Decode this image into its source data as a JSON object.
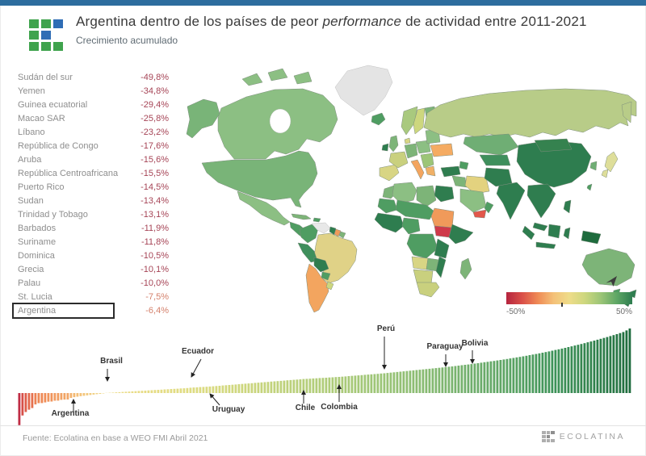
{
  "header": {
    "title": {
      "prefix": "Argentina dentro de los países de peor ",
      "italic": "performance",
      "suffix": " de actividad entre 2011-2021"
    },
    "subtitle": "Crecimiento acumulado",
    "accent_bar_color": "#2d6d9e",
    "logo_green": "#3fa34d",
    "logo_blue": "#2f6db5"
  },
  "ranking": {
    "value_color": "#a64456",
    "muted_value_color": "#d4806b",
    "rows": [
      {
        "label": "Sudán del sur",
        "value": "-49,8%"
      },
      {
        "label": "Yemen",
        "value": "-34,8%"
      },
      {
        "label": "Guinea ecuatorial",
        "value": "-29,4%"
      },
      {
        "label": "Macao SAR",
        "value": "-25,8%"
      },
      {
        "label": "Líbano",
        "value": "-23,2%"
      },
      {
        "label": "República de Congo",
        "value": "-17,6%"
      },
      {
        "label": "Aruba",
        "value": "-15,6%"
      },
      {
        "label": "República Centroafricana",
        "value": "-15,5%"
      },
      {
        "label": "Puerto Rico",
        "value": "-14,5%"
      },
      {
        "label": "Sudan",
        "value": "-13,4%"
      },
      {
        "label": "Trinidad y Tobago",
        "value": "-13,1%"
      },
      {
        "label": "Barbados",
        "value": "-11,9%"
      },
      {
        "label": "Suriname",
        "value": "-11,8%"
      },
      {
        "label": "Dominica",
        "value": "-10,5%"
      },
      {
        "label": "Grecia",
        "value": "-10,1%"
      },
      {
        "label": "Palau",
        "value": "-10,0%"
      },
      {
        "label": "St. Lucia",
        "value": "-7,5%",
        "muted": true
      },
      {
        "label": "Argentina",
        "value": "-6,4%",
        "muted": true,
        "boxed": true
      }
    ]
  },
  "map": {
    "regions": {
      "greenland": "#e4e4e4",
      "arctic_islands": "#8cbf83",
      "alaska": "#79b478",
      "canada": "#8cbf83",
      "usa": "#79b478",
      "mexico": "#8cbf83",
      "central_america": "#4f9d62",
      "cuba": "#7db478",
      "hispaniola": "#4f9d62",
      "colombia": "#4f9d62",
      "venezuela": "#e8e8e8",
      "guyana": "#2f7d4f",
      "suriname": "#f09a5a",
      "fr_guiana": "#7db478",
      "brazil": "#e0d287",
      "peru": "#3f8f5c",
      "bolivia": "#2f7d4f",
      "paraguay": "#4f9d62",
      "argentina_chile": "#f3a55f",
      "uruguay": "#cdd77e",
      "iceland": "#4f9d62",
      "ireland": "#2e7d4f",
      "uk": "#7db478",
      "norway": "#a9c97e",
      "sweden": "#cdd77e",
      "finland": "#7db478",
      "denmark": "#d8d584",
      "iberia": "#d8d584",
      "france": "#c9d07e",
      "germany": "#7db478",
      "italy": "#f3a55f",
      "poland": "#8cbf83",
      "balkans": "#9cc577",
      "greece": "#f0b066",
      "ukraine": "#f5ab62",
      "baltics": "#8cbf83",
      "russia": "#b8cc88",
      "kamchatka": "#b8cc88",
      "turkey": "#2f7d4f",
      "caucasus": "#4f9d62",
      "iraq": "#7db478",
      "iran": "#e3d27f",
      "saudi": "#8cbf83",
      "yemen": "#e2574b",
      "oman": "#4f9d62",
      "kazakhstan": "#6fae74",
      "central_asia": "#3f8f5c",
      "afghan_pak": "#2f7d4f",
      "india": "#2e7d4f",
      "china": "#2e7d4f",
      "mongolia": "#35824f",
      "korea": "#6fae74",
      "japan": "#dede9a",
      "taiwan": "#4f9d62",
      "se_asia": "#2f7d4f",
      "malaysia": "#2e7d4f",
      "sumatra": "#2e7d4f",
      "borneo": "#2e7d4f",
      "java": "#2e7d4f",
      "sulawesi": "#2e7d4f",
      "papua": "#1e6b3d",
      "philippines": "#2f7d4f",
      "morocco": "#7db478",
      "algeria": "#8cbf83",
      "libya": "#7db478",
      "egypt": "#2f7d4f",
      "mauritania": "#4f9d62",
      "sahel": "#4f9d62",
      "sudan": "#f09a5a",
      "south_sudan": "#cf3a4a",
      "horn": "#2f7d4f",
      "west_africa": "#2e7d4f",
      "nigeria": "#4f9d62",
      "drc": "#4f9d62",
      "east_africa": "#2f7d4f",
      "angola": "#d8d584",
      "zambia": "#7db478",
      "mozambique": "#2f7d4f",
      "namibia": "#c9d07e",
      "south_africa": "#c9d07e",
      "madagascar": "#7db478",
      "australia": "#7db478",
      "tasmania": "#4f9d62",
      "new_zealand": "#2e7d4f"
    }
  },
  "legend": {
    "min_label": "-50%",
    "max_label": "50%",
    "marker_value": -6.4,
    "stops": [
      "#b5253f",
      "#d94f48",
      "#ef8a55",
      "#f4c178",
      "#eedc89",
      "#cdd77e",
      "#9cc577",
      "#5fa765",
      "#2e7d4f"
    ]
  },
  "chart_data": [
    {
      "type": "bar",
      "xlabel": "",
      "ylabel": "",
      "ylim": [
        -50,
        100
      ],
      "sorted": "ascending",
      "color_stops": [
        [
          -50,
          "#bf2c44"
        ],
        [
          -30,
          "#dd5a49"
        ],
        [
          -15,
          "#ef8a55"
        ],
        [
          -5,
          "#f4c178"
        ],
        [
          0,
          "#eedc89"
        ],
        [
          8,
          "#dfdc82"
        ],
        [
          18,
          "#c2d37c"
        ],
        [
          30,
          "#9cc577"
        ],
        [
          45,
          "#6fae6c"
        ],
        [
          65,
          "#3f9459"
        ],
        [
          100,
          "#1e6b3d"
        ]
      ],
      "values": [
        -49.8,
        -34.8,
        -29.4,
        -25.8,
        -23.2,
        -17.6,
        -15.6,
        -15.5,
        -14.5,
        -13.4,
        -13.1,
        -11.9,
        -11.8,
        -10.5,
        -10.1,
        -10.0,
        -7.5,
        -6.4,
        -5.6,
        -4.9,
        -4.2,
        -3.6,
        -3.0,
        -2.4,
        -1.8,
        -1.2,
        -0.6,
        0.2,
        0.5,
        0.8,
        1.1,
        1.4,
        1.7,
        2.0,
        2.3,
        2.6,
        2.9,
        3.2,
        3.5,
        3.8,
        4.1,
        4.4,
        4.7,
        5.0,
        5.3,
        5.6,
        5.9,
        6.2,
        6.5,
        6.8,
        7.1,
        7.4,
        7.7,
        8.3,
        8.6,
        8.9,
        9.2,
        9.5,
        9.8,
        10.1,
        10.5,
        10.9,
        11.3,
        11.7,
        12.1,
        12.5,
        12.9,
        13.3,
        13.7,
        14.1,
        14.5,
        14.9,
        15.3,
        15.7,
        16.1,
        16.5,
        16.9,
        17.3,
        17.7,
        18.1,
        18.5,
        18.9,
        19.3,
        19.7,
        20.1,
        20.5,
        20.9,
        21.3,
        21.7,
        22.0,
        22.3,
        22.6,
        22.9,
        23.2,
        23.5,
        23.8,
        24.1,
        24.4,
        24.7,
        25.0,
        25.4,
        25.8,
        26.2,
        26.6,
        27.0,
        27.4,
        27.8,
        28.2,
        28.6,
        29.0,
        29.4,
        29.8,
        30.2,
        30.6,
        31.1,
        31.6,
        32.1,
        32.6,
        33.1,
        33.6,
        34.1,
        34.6,
        35.1,
        35.6,
        36.1,
        36.6,
        37.1,
        37.6,
        38.1,
        38.6,
        39.1,
        39.6,
        40.1,
        40.7,
        41.3,
        41.9,
        42.5,
        43.1,
        43.7,
        44.3,
        44.9,
        45.6,
        46.3,
        47.0,
        47.7,
        48.4,
        49.1,
        49.8,
        50.5,
        51.2,
        52.0,
        52.8,
        53.6,
        54.4,
        55.2,
        56.0,
        56.9,
        57.8,
        58.7,
        59.6,
        60.5,
        61.5,
        62.5,
        63.5,
        64.5,
        65.6,
        66.7,
        67.8,
        68.9,
        70.0,
        71.2,
        72.4,
        73.6,
        74.8,
        76.0,
        77.3,
        78.6,
        79.9,
        81.2,
        82.6,
        84.0,
        85.4,
        86.8,
        88.3,
        89.8,
        91.3,
        92.9,
        94.5,
        97.0,
        100.0
      ],
      "annotations": [
        {
          "label": "Argentina",
          "index": 17,
          "label_x": 65,
          "label_y": 115,
          "arrow": [
            69,
            110,
            69,
            95
          ]
        },
        {
          "label": "Brasil",
          "index": 27,
          "label_x": 116,
          "label_y": 50,
          "arrow": [
            111,
            57,
            111,
            72
          ]
        },
        {
          "label": "Ecuador",
          "index": 53,
          "label_x": 223,
          "label_y": 38,
          "arrow": [
            227,
            45,
            215,
            67
          ]
        },
        {
          "label": "Uruguay",
          "index": 59,
          "label_x": 261,
          "label_y": 110,
          "arrow": [
            250,
            102,
            238,
            88
          ]
        },
        {
          "label": "Chile",
          "index": 88,
          "label_x": 356,
          "label_y": 108,
          "arrow": [
            354,
            100,
            354,
            84
          ]
        },
        {
          "label": "Colombia",
          "index": 99,
          "label_x": 398,
          "label_y": 107,
          "arrow": [
            398,
            98,
            398,
            77
          ]
        },
        {
          "label": "Perú",
          "index": 113,
          "label_x": 456,
          "label_y": 10,
          "arrow": [
            454,
            17,
            454,
            57
          ]
        },
        {
          "label": "Paraguay",
          "index": 132,
          "label_x": 529,
          "label_y": 32,
          "arrow": [
            530,
            39,
            530,
            54
          ]
        },
        {
          "label": "Bolivia",
          "index": 140,
          "label_x": 566,
          "label_y": 28,
          "arrow": [
            563,
            34,
            563,
            50
          ]
        }
      ]
    },
    {
      "type": "heatmap",
      "title": "Choropleth: crecimiento acumulado por país 2011-2021",
      "legend": {
        "min": "-50%",
        "max": "50%"
      },
      "note": "region colors listed under map.regions"
    }
  ],
  "footer": {
    "source": "Fuente: Ecolatina en base a WEO FMI Abril 2021",
    "brand": "ECOLATINA"
  }
}
